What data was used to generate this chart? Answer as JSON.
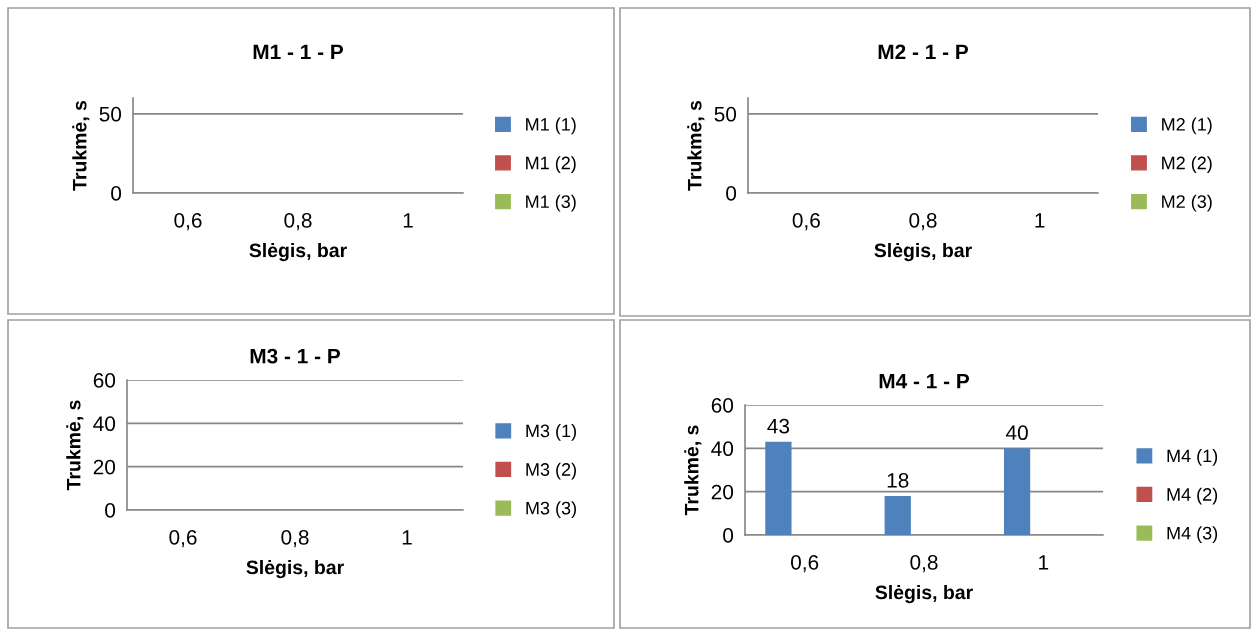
{
  "chart_data": [
    {
      "type": "bar",
      "title": "M1 - 1 - P",
      "xlabel": "Slėgis, bar",
      "ylabel": "Trukmė, s",
      "categories": [
        "0,6",
        "0,8",
        "1"
      ],
      "ylim": [
        0,
        60
      ],
      "yticks": [
        0,
        50
      ],
      "grid": "y",
      "legend": "right",
      "series": [
        {
          "name": "M1 (1)",
          "color": "#4f81bd",
          "values": [
            null,
            null,
            null
          ]
        },
        {
          "name": "M1 (2)",
          "color": "#c0504d",
          "values": [
            null,
            null,
            null
          ]
        },
        {
          "name": "M1 (3)",
          "color": "#9bbb59",
          "values": [
            null,
            null,
            null
          ]
        }
      ]
    },
    {
      "type": "bar",
      "title": "M2 - 1 - P",
      "xlabel": "Slėgis, bar",
      "ylabel": "Trukmė, s",
      "categories": [
        "0,6",
        "0,8",
        "1"
      ],
      "ylim": [
        0,
        60
      ],
      "yticks": [
        0,
        50
      ],
      "grid": "y",
      "legend": "right",
      "series": [
        {
          "name": "M2 (1)",
          "color": "#4f81bd",
          "values": [
            null,
            null,
            null
          ]
        },
        {
          "name": "M2 (2)",
          "color": "#c0504d",
          "values": [
            null,
            null,
            null
          ]
        },
        {
          "name": "M2 (3)",
          "color": "#9bbb59",
          "values": [
            null,
            null,
            null
          ]
        }
      ]
    },
    {
      "type": "bar",
      "title": "M3 - 1 - P",
      "xlabel": "Slėgis, bar",
      "ylabel": "Trukmė, s",
      "categories": [
        "0,6",
        "0,8",
        "1"
      ],
      "ylim": [
        0,
        60
      ],
      "yticks": [
        0,
        20,
        40,
        60
      ],
      "grid": "y",
      "legend": "right",
      "series": [
        {
          "name": "M3 (1)",
          "color": "#4f81bd",
          "values": [
            null,
            null,
            null
          ]
        },
        {
          "name": "M3 (2)",
          "color": "#c0504d",
          "values": [
            null,
            null,
            null
          ]
        },
        {
          "name": "M3 (3)",
          "color": "#9bbb59",
          "values": [
            null,
            null,
            null
          ]
        }
      ]
    },
    {
      "type": "bar",
      "title": "M4 - 1 - P",
      "xlabel": "Slėgis, bar",
      "ylabel": "Trukmė, s",
      "categories": [
        "0,6",
        "0,8",
        "1"
      ],
      "ylim": [
        0,
        60
      ],
      "yticks": [
        0,
        20,
        40,
        60
      ],
      "grid": "y",
      "legend": "right",
      "data_labels": true,
      "series": [
        {
          "name": "M4 (1)",
          "color": "#4f81bd",
          "values": [
            43,
            18,
            40
          ]
        },
        {
          "name": "M4 (2)",
          "color": "#c0504d",
          "values": [
            null,
            null,
            null
          ]
        },
        {
          "name": "M4 (3)",
          "color": "#9bbb59",
          "values": [
            null,
            null,
            null
          ]
        }
      ]
    }
  ]
}
